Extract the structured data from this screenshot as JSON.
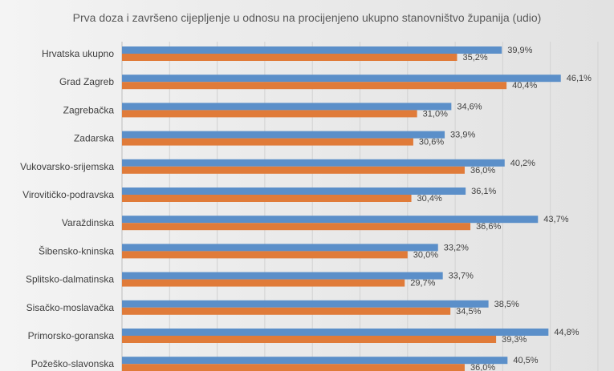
{
  "chart_data": {
    "type": "bar",
    "orientation": "horizontal",
    "title": "Prva doza i završeno cijepljenje u odnosu na procijenjeno ukupno stanovništvo županija (udio)",
    "categories": [
      "Hrvatska ukupno",
      "Grad Zagreb",
      "Zagrebačka",
      "Zadarska",
      "Vukovarsko-srijemska",
      "Virovitičko-podravska",
      "Varaždinska",
      "Šibensko-kninska",
      "Splitsko-dalmatinska",
      "Sisačko-moslavačka",
      "Primorsko-goranska",
      "Požeško-slavonska"
    ],
    "series": [
      {
        "color": "#5b8fc9",
        "values": [
          39.9,
          46.1,
          34.6,
          33.9,
          40.2,
          36.1,
          43.7,
          33.2,
          33.7,
          38.5,
          44.8,
          40.5
        ],
        "labels": [
          "39,9%",
          "46,1%",
          "34,6%",
          "33,9%",
          "40,2%",
          "36,1%",
          "43,7%",
          "33,2%",
          "33,7%",
          "38,5%",
          "44,8%",
          "40,5%"
        ]
      },
      {
        "color": "#e07b39",
        "values": [
          35.2,
          40.4,
          31.0,
          30.6,
          36.0,
          30.4,
          36.6,
          30.0,
          29.7,
          34.5,
          39.3,
          36.0
        ],
        "labels": [
          "35,2%",
          "40,4%",
          "31,0%",
          "30,6%",
          "36,0%",
          "30,4%",
          "36,6%",
          "30,0%",
          "29,7%",
          "34,5%",
          "39,3%",
          "36,0%"
        ]
      }
    ],
    "xlim": [
      0,
      50
    ],
    "grid": true,
    "legend": "none"
  }
}
